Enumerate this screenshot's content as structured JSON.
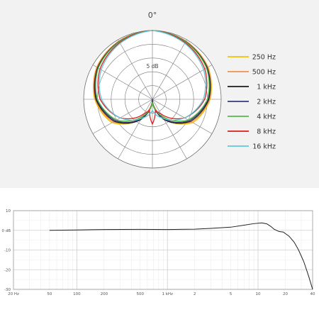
{
  "chart_data": [
    {
      "type": "polar",
      "angle_label": "0°",
      "radial_label": "5 dB",
      "radial_step_db": 5,
      "rings": 5,
      "spokes_every_deg": 30,
      "legend_placement": "right",
      "series": [
        {
          "name": "250 Hz",
          "color": "#f2c200",
          "angles": [
            0,
            30,
            60,
            90,
            120,
            150,
            165,
            180
          ],
          "db": [
            0,
            -0.6,
            -1.6,
            -4,
            -8,
            -17,
            -22,
            -25
          ]
        },
        {
          "name": "500 Hz",
          "color": "#f0914a",
          "angles": [
            0,
            30,
            60,
            90,
            120,
            150,
            165,
            180
          ],
          "db": [
            0,
            -0.6,
            -1.7,
            -4.2,
            -8.5,
            -17.5,
            -22,
            -24
          ]
        },
        {
          "name": "1 kHz",
          "color": "#1a1a1a",
          "angles": [
            0,
            30,
            60,
            90,
            120,
            150,
            165,
            180
          ],
          "db": [
            0,
            -0.8,
            -2,
            -4.5,
            -9,
            -16.5,
            -21,
            -25
          ]
        },
        {
          "name": "2 kHz",
          "color": "#3a3a7a",
          "angles": [
            0,
            30,
            60,
            90,
            120,
            150,
            165,
            180
          ],
          "db": [
            0,
            -0.8,
            -2.2,
            -4.8,
            -9.5,
            -17,
            -21,
            -25
          ]
        },
        {
          "name": "4 kHz",
          "color": "#55b94a",
          "angles": [
            0,
            30,
            60,
            90,
            120,
            150,
            165,
            180
          ],
          "db": [
            0,
            -0.9,
            -2.3,
            -5,
            -10,
            -18,
            -21,
            -24
          ]
        },
        {
          "name": "8 kHz",
          "color": "#d91e1e",
          "angles": [
            0,
            30,
            60,
            90,
            120,
            150,
            165,
            180
          ],
          "db": [
            0,
            -1.2,
            -3,
            -6,
            -11.5,
            -19,
            -21,
            -16
          ]
        },
        {
          "name": "16 kHz",
          "color": "#5bc8d8",
          "angles": [
            0,
            30,
            60,
            90,
            120,
            150,
            165,
            180
          ],
          "db": [
            0,
            -1.5,
            -3.5,
            -6.5,
            -11.5,
            -17,
            -19,
            -21
          ]
        }
      ]
    },
    {
      "type": "line",
      "x_scale": "log",
      "xlim": [
        20,
        40000
      ],
      "ylim": [
        -30,
        10
      ],
      "grid": true,
      "y_ticks": [
        {
          "value": 10,
          "label": "10"
        },
        {
          "value": 0,
          "label": "0 dB"
        },
        {
          "value": -10,
          "label": "-10"
        },
        {
          "value": -20,
          "label": "-20"
        },
        {
          "value": -30,
          "label": "-30"
        }
      ],
      "x_ticks": [
        {
          "value": 20,
          "label": "20 Hz"
        },
        {
          "value": 50,
          "label": "50"
        },
        {
          "value": 100,
          "label": "100"
        },
        {
          "value": 200,
          "label": "200"
        },
        {
          "value": 500,
          "label": "500"
        },
        {
          "value": 1000,
          "label": "1 kHz"
        },
        {
          "value": 2000,
          "label": "2"
        },
        {
          "value": 5000,
          "label": "5"
        },
        {
          "value": 10000,
          "label": "10"
        },
        {
          "value": 20000,
          "label": "20"
        },
        {
          "value": 40000,
          "label": "40"
        }
      ],
      "series": [
        {
          "color": "#222222",
          "x": [
            50,
            100,
            200,
            500,
            1000,
            2000,
            3000,
            5000,
            7000,
            9000,
            11000,
            12500,
            14000,
            15000,
            17000,
            19000,
            22000,
            25000,
            28000,
            32000,
            36000,
            40000
          ],
          "y": [
            0,
            0.2,
            0.4,
            0.5,
            0.4,
            0.6,
            1.0,
            1.6,
            2.6,
            3.4,
            3.8,
            3.3,
            1.8,
            0.6,
            -0.6,
            -0.9,
            -3,
            -6,
            -10,
            -16,
            -23,
            -30
          ]
        }
      ]
    }
  ]
}
